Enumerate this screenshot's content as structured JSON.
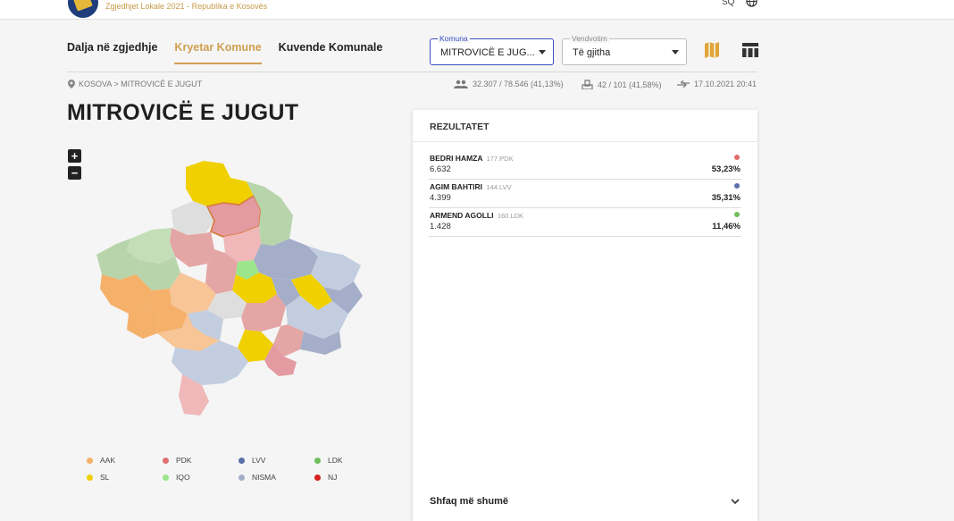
{
  "site": {
    "title": "Zgjedhjet Lokale 2021 - Republika e Kosovës",
    "lang": "SQ"
  },
  "tabs": [
    {
      "label": "Dalja në zgjedhje"
    },
    {
      "label": "Kryetar Komune",
      "active": true
    },
    {
      "label": "Kuvende Komunale"
    }
  ],
  "filters": {
    "komuna": {
      "label": "Komuna",
      "value": "MITROVICË E JUG..."
    },
    "vendvotim": {
      "label": "Vendvotim",
      "value": "Të gjitha"
    }
  },
  "breadcrumb": "KOSOVA > MITROVICË E JUGUT",
  "stats": {
    "turnout": "32.307 / 78.546 (41,13%)",
    "centers": "42 / 101 (41,58%)",
    "updated": "17.10.2021 20:41"
  },
  "page_title": "MITROVICË E JUGUT",
  "results": {
    "header": "REZULTATET",
    "candidates": [
      {
        "name": "BEDRI HAMZA",
        "party": "177.PDK",
        "votes": "6.632",
        "percent": "53,23%",
        "share": 0.5323,
        "color": "#e06b6b"
      },
      {
        "name": "AGIM BAHTIRI",
        "party": "144.LVV",
        "votes": "4.399",
        "percent": "35,31%",
        "share": 0.3531,
        "color": "#5a6fa8"
      },
      {
        "name": "ARMEND AGOLLI",
        "party": "160.LDK",
        "votes": "1.428",
        "percent": "11,46%",
        "share": 0.1146,
        "color": "#6fbf5a"
      }
    ],
    "show_more": "Shfaq më shumë"
  },
  "legend": [
    {
      "label": "AAK",
      "color": "#f5b06a"
    },
    {
      "label": "PDK",
      "color": "#e07070"
    },
    {
      "label": "LVV",
      "color": "#5a6fa8"
    },
    {
      "label": "LDK",
      "color": "#6fbf5a"
    },
    {
      "label": "SL",
      "color": "#f0d000"
    },
    {
      "label": "IQO",
      "color": "#9be68a"
    },
    {
      "label": "NISMA",
      "color": "#a4aec8"
    },
    {
      "label": "NJ",
      "color": "#d62020"
    }
  ]
}
